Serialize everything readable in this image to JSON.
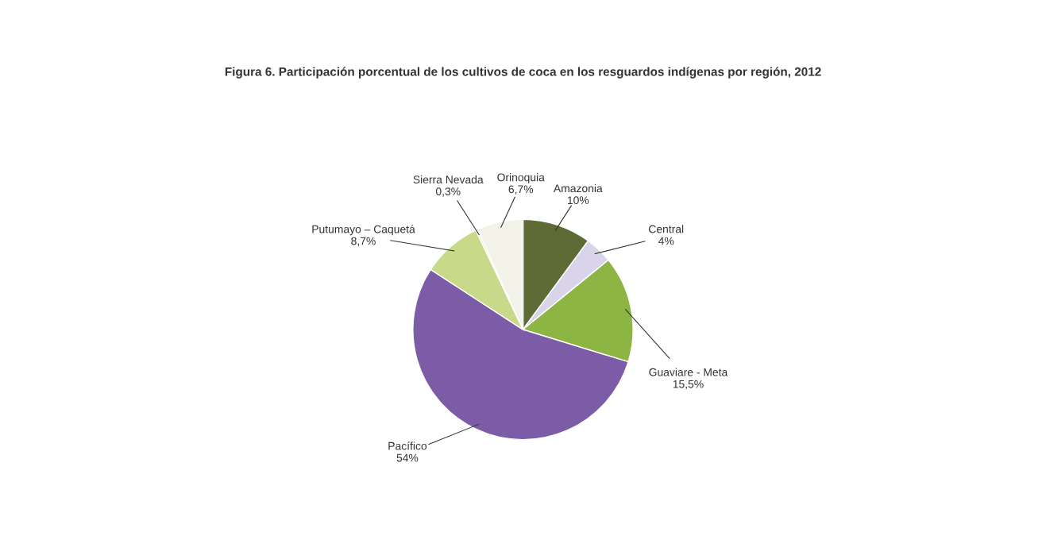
{
  "chart_data": {
    "type": "pie",
    "title": "Figura 6. Participación porcentual de los cultivos de coca en los resguardos indígenas por región, 2012",
    "categories": [
      "Amazonia",
      "Central",
      "Guaviare - Meta",
      "Pacífico",
      "Putumayo – Caquetá",
      "Sierra Nevada",
      "Orinoquia"
    ],
    "values": [
      10,
      4,
      15.5,
      54,
      8.7,
      0.3,
      6.7
    ],
    "value_labels": [
      "10%",
      "4%",
      "15,5%",
      "54%",
      "8,7%",
      "0,3%",
      "6,7%"
    ],
    "colors": [
      "#5e6b35",
      "#d9d4ea",
      "#8db543",
      "#7c5ca6",
      "#c9d98a",
      "#e4e9b8",
      "#f2f2e8"
    ]
  }
}
